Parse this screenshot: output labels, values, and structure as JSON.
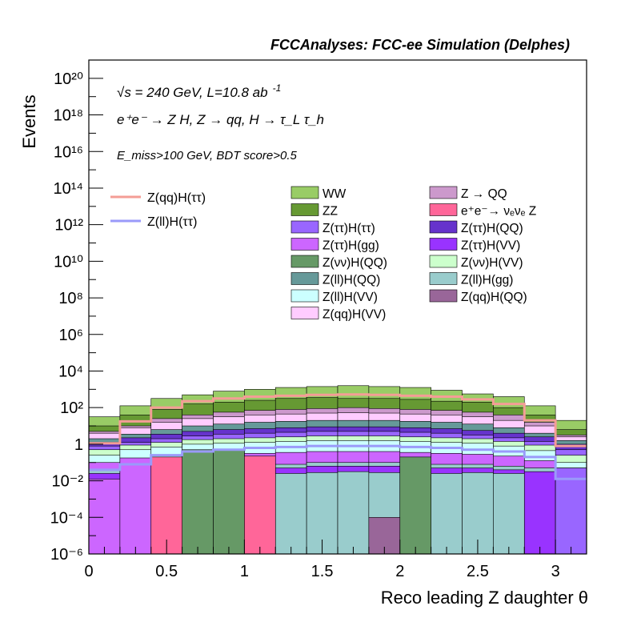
{
  "chart_data": {
    "type": "histogram",
    "title": "FCCAnalyses: FCC-ee Simulation (Delphes)",
    "annotations": {
      "line1": "√s = 240 GeV, L=10.8 ab",
      "line1_sup": "-1",
      "line2": "e⁺e⁻ → Z H, Z → qq, H → τ_L τ_h",
      "line3": "E_miss>100 GeV, BDT score>0.5"
    },
    "xlabel": "Reco leading Z daughter θ",
    "ylabel": "Events",
    "xlim": [
      0,
      3.2
    ],
    "ylim_log10": [
      -6,
      21
    ],
    "yscale": "log",
    "x_ticks": [
      "0",
      "0.5",
      "1",
      "1.5",
      "2",
      "2.5",
      "3"
    ],
    "x_tick_values": [
      0,
      0.5,
      1,
      1.5,
      2,
      2.5,
      3
    ],
    "y_ticks": [
      "10⁻⁶",
      "10⁻⁴",
      "10⁻²",
      "1",
      "10²",
      "10⁴",
      "10⁶",
      "10⁸",
      "10¹⁰",
      "10¹²",
      "10¹⁴",
      "10¹⁶",
      "10¹⁸",
      "10²⁰"
    ],
    "y_tick_log10": [
      -6,
      -4,
      -2,
      0,
      2,
      4,
      6,
      8,
      10,
      12,
      14,
      16,
      18,
      20
    ],
    "bin_edges": [
      0,
      0.2,
      0.4,
      0.6,
      0.8,
      1.0,
      1.2,
      1.4,
      1.6,
      1.8,
      2.0,
      2.2,
      2.4,
      2.6,
      2.8,
      3.0,
      3.2
    ],
    "stack_top_log10": {
      "WW": [
        1.5,
        2.1,
        2.5,
        2.7,
        2.9,
        3.0,
        3.1,
        3.15,
        3.2,
        3.15,
        3.1,
        2.95,
        2.75,
        2.6,
        2.1,
        1.3
      ],
      "ZZ": [
        1.0,
        1.6,
        1.9,
        2.2,
        2.3,
        2.4,
        2.5,
        2.55,
        2.5,
        2.5,
        2.45,
        2.35,
        2.3,
        2.0,
        1.6,
        0.8
      ],
      "ZQQ": [
        0.7,
        1.0,
        1.4,
        1.6,
        1.75,
        1.85,
        1.9,
        1.95,
        2.0,
        1.95,
        1.9,
        1.85,
        1.75,
        1.6,
        1.2,
        0.5
      ],
      "ZqqHVV": [
        0.6,
        0.9,
        1.2,
        1.4,
        1.5,
        1.6,
        1.65,
        1.7,
        1.72,
        1.7,
        1.65,
        1.6,
        1.5,
        1.3,
        1.0,
        0.4
      ],
      "ZllHQQ": [
        0.3,
        0.55,
        0.8,
        1.0,
        1.1,
        1.2,
        1.25,
        1.3,
        1.3,
        1.3,
        1.25,
        1.2,
        1.1,
        0.9,
        0.6,
        0.2
      ],
      "ZttHQQ": [
        0.1,
        0.35,
        0.55,
        0.7,
        0.8,
        0.85,
        0.9,
        0.95,
        0.95,
        0.95,
        0.9,
        0.85,
        0.75,
        0.6,
        0.4,
        0.0
      ],
      "ZttHtt": [
        -0.1,
        0.1,
        0.3,
        0.45,
        0.55,
        0.6,
        0.65,
        0.7,
        0.7,
        0.7,
        0.65,
        0.6,
        0.5,
        0.35,
        0.15,
        -0.3
      ],
      "ZvvHVV": [
        -0.3,
        -0.05,
        0.1,
        0.25,
        0.3,
        0.35,
        0.4,
        0.45,
        0.45,
        0.45,
        0.4,
        0.35,
        0.3,
        0.15,
        -0.05,
        -0.6
      ],
      "ZllHVV": [
        -0.6,
        -0.3,
        -0.15,
        0.0,
        0.05,
        0.1,
        0.15,
        0.2,
        0.2,
        0.2,
        0.15,
        0.1,
        0.05,
        -0.1,
        -0.35,
        -1.0
      ],
      "ZttHgg": [
        -1.0,
        -0.9,
        -0.8,
        -0.6,
        -0.55,
        -0.5,
        -0.45,
        -0.4,
        -0.4,
        -0.4,
        -0.45,
        -0.5,
        -0.55,
        -0.65,
        -0.9,
        -1.3
      ],
      "ZllHgg": [
        -1.4,
        -1.3,
        -1.2,
        -1.1,
        -1.1,
        -1.1,
        -1.1,
        -1.0,
        -1.0,
        -1.0,
        -1.1,
        -1.1,
        -1.1,
        -1.2,
        -1.3,
        -1.6
      ],
      "ZttHVV": [
        -1.6,
        -1.5,
        -1.4,
        -1.3,
        -1.3,
        -1.3,
        -1.3,
        -1.2,
        -1.2,
        -1.2,
        -1.3,
        -1.3,
        -1.3,
        -1.4,
        -1.5,
        -2.0
      ],
      "ZvvHQQ": [
        -99,
        -99,
        -99,
        -0.3,
        -0.3,
        -99,
        -99,
        -99,
        -99,
        -99,
        -0.7,
        -99,
        -99,
        -99,
        -99,
        -99
      ],
      "eeZnunu": [
        -99,
        -99,
        -0.7,
        -99,
        -99,
        -0.65,
        -99,
        -99,
        -99,
        -99,
        -99,
        -99,
        -99,
        -99,
        -99,
        -99
      ],
      "ZqqHQQ": [
        -99,
        -99,
        -99,
        -99,
        -99,
        -99,
        -99,
        -99,
        -99,
        -4.0,
        -99,
        -99,
        -99,
        -99,
        -99,
        -99
      ],
      "ZttHgg_low": [
        -1.9,
        -0.75,
        -6,
        -6,
        -6,
        -6,
        -6,
        -6,
        -6,
        -6,
        -6,
        -6,
        -6,
        -6,
        -6,
        -1.3
      ]
    },
    "signal_lines_log10": {
      "Z(qq)H(ττ)": [
        0.05,
        1.25,
        2.0,
        2.35,
        2.5,
        2.6,
        2.65,
        2.7,
        2.72,
        2.7,
        2.65,
        2.6,
        2.45,
        2.2,
        1.3,
        -0.1
      ],
      "Z(ll)H(ττ)": [
        -1.4,
        -1.1,
        -0.6,
        -0.4,
        -0.3,
        -0.2,
        -0.15,
        -0.1,
        -0.1,
        -0.1,
        -0.15,
        -0.2,
        -0.3,
        -0.4,
        -0.7,
        -1.9
      ]
    },
    "legend_lines": [
      {
        "name": "Z(qq)H(ττ)",
        "color": "#f49d96"
      },
      {
        "name": "Z(ll)H(ττ)",
        "color": "#9a9afa"
      }
    ],
    "legend_col1": [
      {
        "name": "WW",
        "color": "#99cc66"
      },
      {
        "name": "ZZ",
        "color": "#669933"
      },
      {
        "name": "Z(ττ)H(ττ)",
        "color": "#9966ff"
      },
      {
        "name": "Z(ττ)H(gg)",
        "color": "#cc66ff"
      },
      {
        "name": "Z(νν)H(QQ)",
        "color": "#669966"
      },
      {
        "name": "Z(ll)H(QQ)",
        "color": "#669999"
      },
      {
        "name": "Z(ll)H(VV)",
        "color": "#ccffff"
      },
      {
        "name": "Z(qq)H(VV)",
        "color": "#ffccff"
      }
    ],
    "legend_col2": [
      {
        "name": "Z → QQ",
        "color": "#cc99cc"
      },
      {
        "name": "e⁺e⁻→ νₑνₑ Z",
        "color": "#ff6699"
      },
      {
        "name": "Z(ττ)H(QQ)",
        "color": "#6633cc"
      },
      {
        "name": "Z(ττ)H(VV)",
        "color": "#9933ff"
      },
      {
        "name": "Z(νν)H(VV)",
        "color": "#ccffcc"
      },
      {
        "name": "Z(ll)H(gg)",
        "color": "#99cccc"
      },
      {
        "name": "Z(qq)H(QQ)",
        "color": "#996699"
      }
    ]
  }
}
